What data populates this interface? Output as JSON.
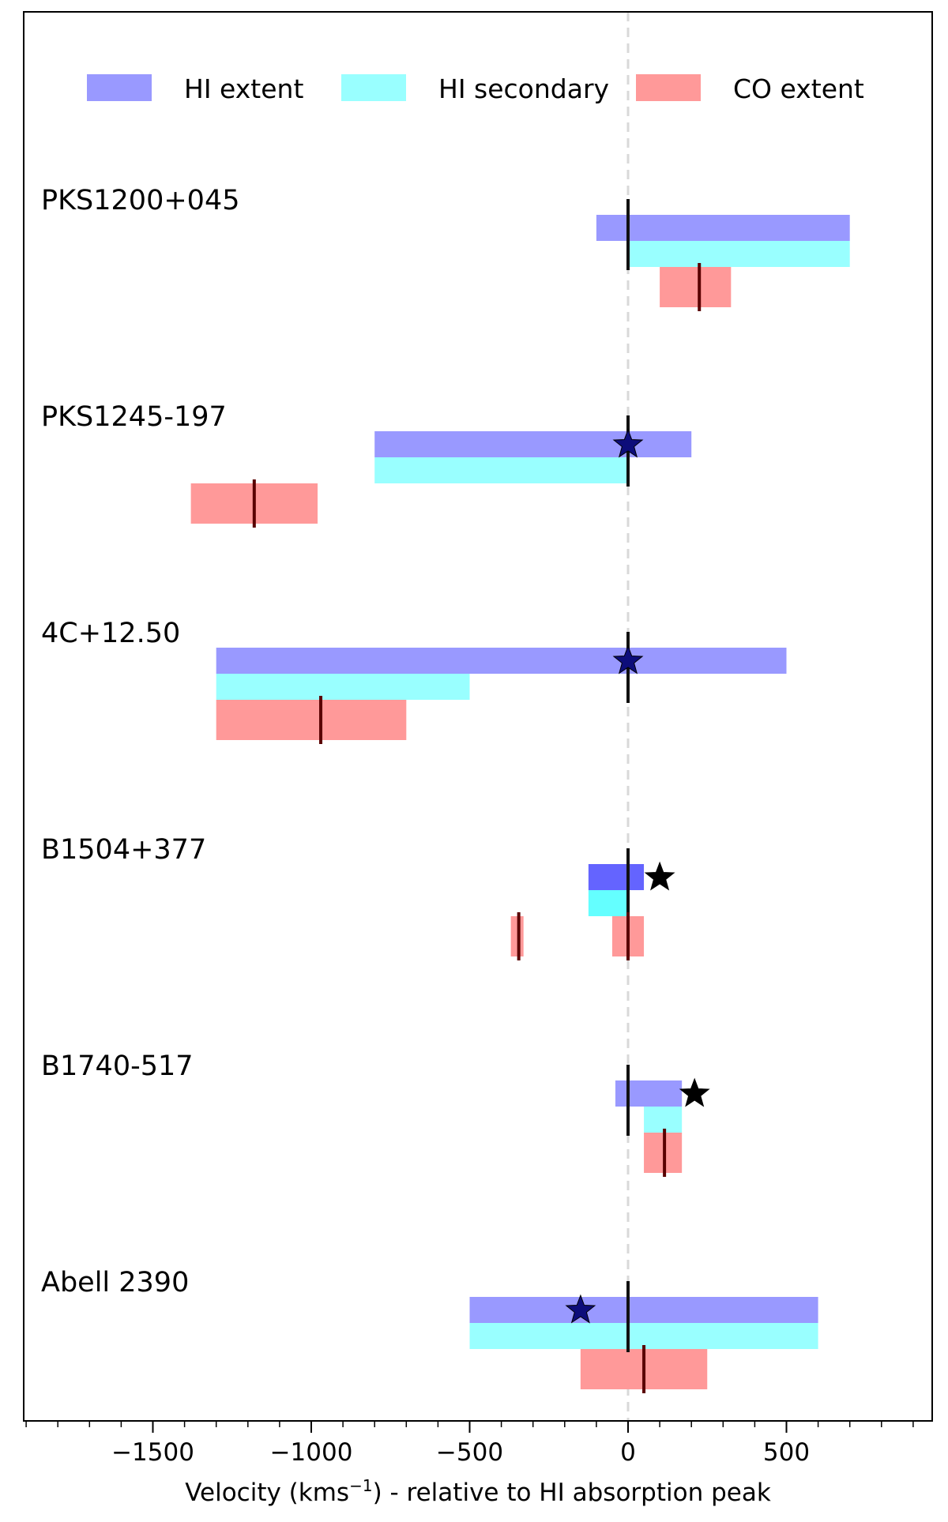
{
  "chart_data": {
    "type": "bar",
    "orientation": "horizontal-range",
    "xlabel_prefix": "Velocity (kms",
    "xlabel_sup": "−1",
    "xlabel_suffix": ") - relative to HI absorption peak",
    "xlim": [
      -1900,
      950
    ],
    "x_ticks": [
      -1500,
      -1000,
      -500,
      0,
      500
    ],
    "x_tick_labels": [
      "−1500",
      "−1000",
      "−500",
      "0",
      "500"
    ],
    "x_minor_step": 100,
    "reference_line": 0,
    "legend": [
      {
        "key": "hi_extent",
        "label": "HI extent",
        "color": "#9999ff"
      },
      {
        "key": "hi_secondary",
        "label": "HI secondary",
        "color": "#99ffff"
      },
      {
        "key": "co_extent",
        "label": "CO extent",
        "color": "#ff9999"
      }
    ],
    "sources": [
      {
        "name": "PKS1200+045",
        "hi_extent": [
          -100,
          700
        ],
        "hi_secondary": [
          0,
          700
        ],
        "co_extent": [
          [
            100,
            325
          ]
        ],
        "hi_peak_marker": 0,
        "co_peak_markers": [
          225
        ],
        "star": null
      },
      {
        "name": "PKS1245-197",
        "hi_extent": [
          -800,
          200
        ],
        "hi_secondary": [
          -800,
          0
        ],
        "co_extent": [
          [
            -1380,
            -980
          ]
        ],
        "hi_peak_marker": 0,
        "co_peak_markers": [
          -1180
        ],
        "star": {
          "value": 0,
          "style": "navy"
        }
      },
      {
        "name": "4C+12.50",
        "hi_extent": [
          -1300,
          500
        ],
        "hi_secondary": [
          -1300,
          -500
        ],
        "co_extent": [
          [
            -1300,
            -700
          ]
        ],
        "hi_peak_marker": 0,
        "co_peak_markers": [
          -970
        ],
        "star": {
          "value": 0,
          "style": "navy"
        }
      },
      {
        "name": "B1504+377",
        "hi_extent": [
          -125,
          50
        ],
        "hi_secondary": [
          -125,
          0
        ],
        "co_extent": [
          [
            -370,
            -330
          ],
          [
            -50,
            50
          ]
        ],
        "hi_peak_marker": 0,
        "co_peak_markers": [
          -345,
          0
        ],
        "star": {
          "value": 100,
          "style": "black"
        },
        "dense": true
      },
      {
        "name": "B1740-517",
        "hi_extent": [
          -40,
          170
        ],
        "hi_secondary": [
          50,
          170
        ],
        "co_extent": [
          [
            50,
            170
          ]
        ],
        "hi_peak_marker": 0,
        "co_peak_markers": [
          115
        ],
        "star": {
          "value": 210,
          "style": "black"
        }
      },
      {
        "name": "Abell 2390",
        "hi_extent": [
          -500,
          600
        ],
        "hi_secondary": [
          -500,
          600
        ],
        "co_extent": [
          [
            -150,
            250
          ]
        ],
        "hi_peak_marker": 0,
        "co_peak_markers": [
          50
        ],
        "star": {
          "value": -150,
          "style": "navy"
        }
      }
    ]
  }
}
